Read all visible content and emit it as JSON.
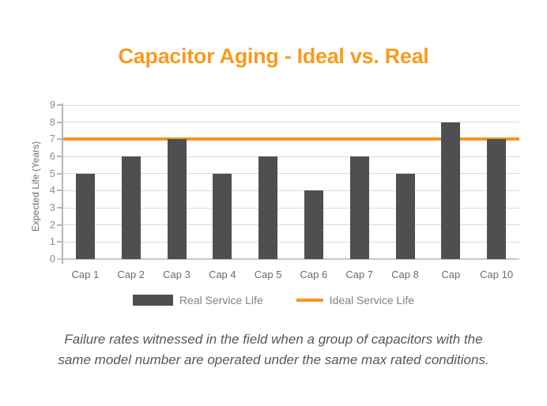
{
  "title": "Capacitor Aging - Ideal vs. Real",
  "chart_data": {
    "type": "bar",
    "title": "Capacitor Aging - Ideal vs. Real",
    "categories": [
      "Cap 1",
      "Cap 2",
      "Cap 3",
      "Cap 4",
      "Cap 5",
      "Cap 6",
      "Cap 7",
      "Cap 8",
      "Cap",
      "Cap 10"
    ],
    "series": [
      {
        "name": "Real Service Life",
        "type": "bar",
        "values": [
          5,
          6,
          7,
          5,
          6,
          4,
          6,
          5,
          8,
          7
        ]
      },
      {
        "name": "Ideal Service Life",
        "type": "line",
        "value": 7
      }
    ],
    "xlabel": "",
    "ylabel": "Expected Life (Years)",
    "ylim": [
      0,
      9
    ],
    "ytick_step": 1,
    "grid": true,
    "legend_position": "bottom"
  },
  "legend": {
    "real_label": "Real Service Life",
    "ideal_label": "Ideal Service Life"
  },
  "caption": {
    "lines": [
      "Failure rates witnessed in the field when a group of capacitors with the",
      "same model number are operated under the same max rated conditions."
    ]
  },
  "colors": {
    "title": "#F89B1E",
    "ideal_line": "#F7941E",
    "bar": "#4E4F51",
    "grid": "#D9DADB",
    "axis": "#B4B6B8",
    "baseline": "#C7C8CA",
    "tick_label": "#8B8D90",
    "category_label": "#6A6C6F",
    "axis_title": "#6D6E71",
    "legend_text": "#808285",
    "caption_text": "#54575A"
  }
}
